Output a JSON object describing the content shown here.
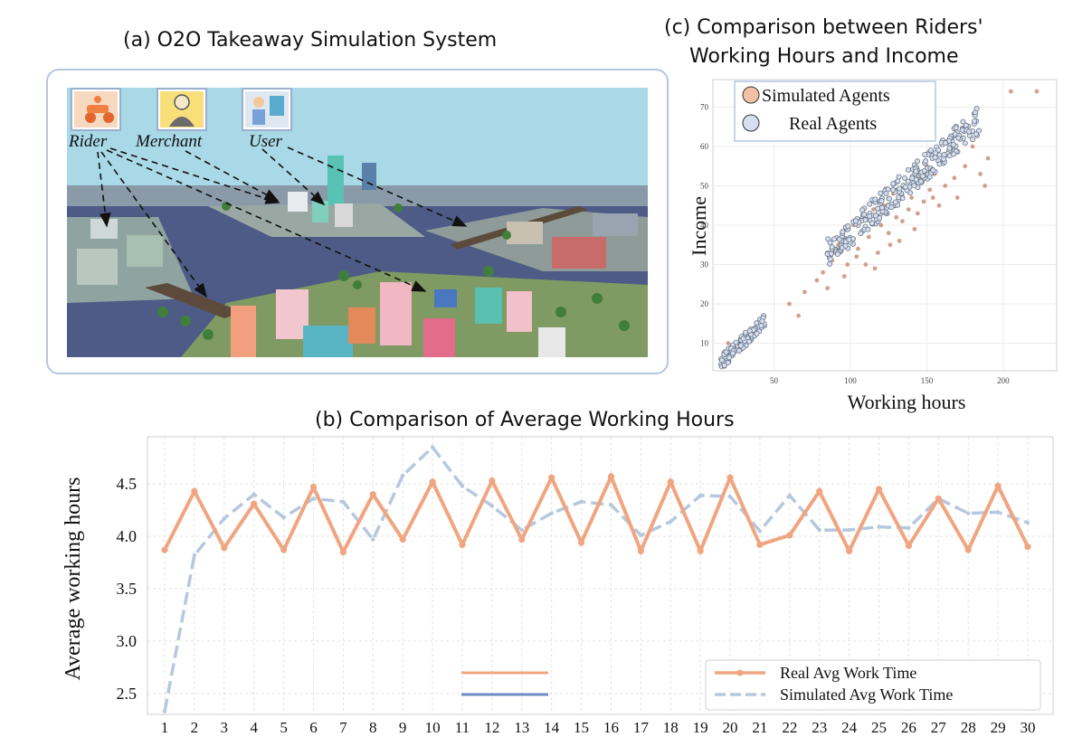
{
  "panel_a": {
    "title": "(a) O2O Takeaway Simulation System",
    "roles": [
      {
        "label": "Rider",
        "icon": "rider-icon"
      },
      {
        "label": "Merchant",
        "icon": "merchant-icon"
      },
      {
        "label": "User",
        "icon": "user-icon"
      }
    ]
  },
  "panel_c": {
    "title_line1": "(c) Comparison between Riders'",
    "title_line2": "Working Hours and Income"
  },
  "panel_b": {
    "title": "(b) Comparison of Average Working Hours"
  },
  "colors": {
    "real": "#f0a580",
    "simulated": "#b6c8de",
    "scatter_sim": "#c9917a",
    "scatter_real": "#8e9aa8",
    "frame": "#b5c6e0",
    "sky": "#a9d8e6",
    "water": "#4d5b86"
  },
  "chart_data": [
    {
      "type": "scatter",
      "xlabel": "Working hours",
      "ylabel": "Income",
      "xlim": [
        10,
        235
      ],
      "ylim": [
        3,
        77
      ],
      "xticks": [
        50,
        100,
        150,
        200
      ],
      "yticks": [
        10,
        20,
        30,
        40,
        50,
        60,
        70
      ],
      "grid": true,
      "legend_position": "top-left",
      "series": [
        {
          "name": "Simulated Agents",
          "color": "#e8b89e",
          "points": [
            [
              20,
              10
            ],
            [
              35,
              13
            ],
            [
              60,
              20
            ],
            [
              66,
              17
            ],
            [
              70,
              23
            ],
            [
              78,
              26
            ],
            [
              82,
              28
            ],
            [
              85,
              24
            ],
            [
              88,
              31
            ],
            [
              90,
              33
            ],
            [
              92,
              35
            ],
            [
              95,
              38
            ],
            [
              98,
              30
            ],
            [
              100,
              36
            ],
            [
              102,
              40
            ],
            [
              105,
              34
            ],
            [
              108,
              42
            ],
            [
              110,
              30
            ],
            [
              112,
              37
            ],
            [
              115,
              44
            ],
            [
              118,
              33
            ],
            [
              120,
              40
            ],
            [
              122,
              45
            ],
            [
              125,
              38
            ],
            [
              128,
              48
            ],
            [
              130,
              42
            ],
            [
              132,
              36
            ],
            [
              135,
              50
            ],
            [
              138,
              44
            ],
            [
              140,
              47
            ],
            [
              142,
              39
            ],
            [
              145,
              52
            ],
            [
              148,
              46
            ],
            [
              150,
              55
            ],
            [
              152,
              49
            ],
            [
              155,
              53
            ],
            [
              158,
              45
            ],
            [
              160,
              56
            ],
            [
              162,
              50
            ],
            [
              165,
              58
            ],
            [
              168,
              52
            ],
            [
              170,
              47
            ],
            [
              175,
              55
            ],
            [
              180,
              60
            ],
            [
              185,
              53
            ],
            [
              188,
              50
            ],
            [
              190,
              57
            ],
            [
              205,
              74
            ],
            [
              222,
              74
            ],
            [
              96,
              27
            ],
            [
              104,
              32
            ],
            [
              116,
              29
            ],
            [
              126,
              35
            ],
            [
              134,
              41
            ],
            [
              144,
              43
            ],
            [
              154,
              47
            ]
          ]
        },
        {
          "name": "Real Agents",
          "color": "#d5dff0",
          "cluster_low": {
            "x_range": [
              15,
              45
            ],
            "y_range": [
              5,
              16
            ]
          },
          "cluster_high": {
            "x_range": [
              85,
              185
            ],
            "y_range": [
              33,
              67
            ]
          }
        }
      ]
    },
    {
      "type": "line",
      "xlabel": "",
      "ylabel": "Average working hours",
      "x": [
        1,
        2,
        3,
        4,
        5,
        6,
        7,
        8,
        9,
        10,
        11,
        12,
        13,
        14,
        15,
        16,
        17,
        18,
        19,
        20,
        21,
        22,
        23,
        24,
        25,
        26,
        27,
        28,
        29,
        30
      ],
      "ylim": [
        2.3,
        4.95
      ],
      "yticks": [
        2.5,
        3.0,
        3.5,
        4.0,
        4.5
      ],
      "grid": true,
      "legend_position": "bottom-right",
      "series": [
        {
          "name": "Real Avg Work Time",
          "color": "#f0a580",
          "values": [
            3.87,
            4.43,
            3.89,
            4.31,
            3.87,
            4.47,
            3.85,
            4.4,
            3.97,
            4.52,
            3.92,
            4.53,
            3.97,
            4.56,
            3.94,
            4.57,
            3.86,
            4.52,
            3.86,
            4.56,
            3.92,
            4.01,
            4.43,
            3.86,
            4.45,
            3.91,
            4.36,
            3.87,
            4.48,
            3.9
          ]
        },
        {
          "name": "Simulated Avg Work Time",
          "color": "#b6c8de",
          "values": [
            2.33,
            3.82,
            4.17,
            4.4,
            4.18,
            4.36,
            4.33,
            3.97,
            4.58,
            4.85,
            4.48,
            4.29,
            4.06,
            4.22,
            4.33,
            4.3,
            4.01,
            4.14,
            4.39,
            4.38,
            4.05,
            4.39,
            4.06,
            4.06,
            4.09,
            4.08,
            4.36,
            4.22,
            4.23,
            4.13
          ]
        }
      ]
    }
  ]
}
